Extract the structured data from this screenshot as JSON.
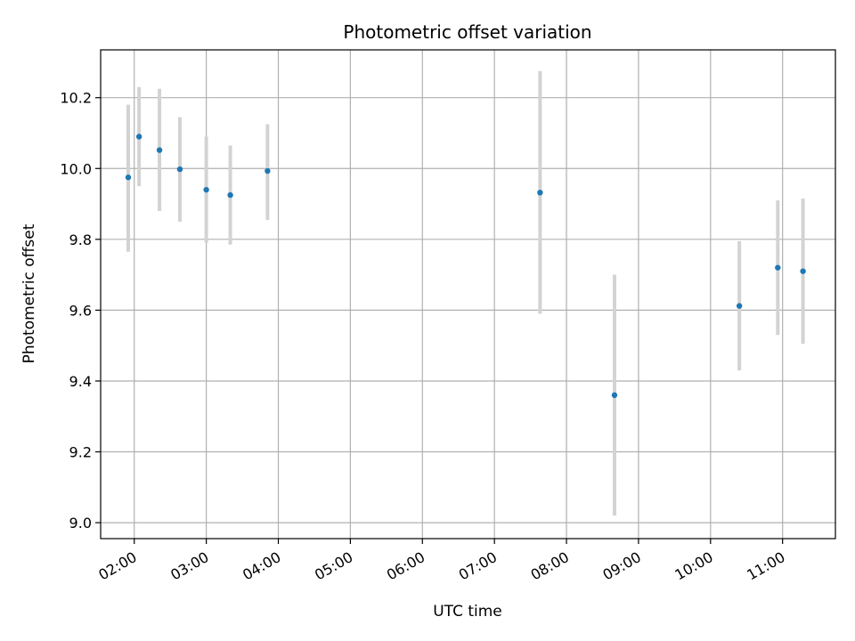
{
  "chart_data": {
    "type": "scatter",
    "title": "Photometric offset variation",
    "xlabel": "UTC time",
    "ylabel": "Photometric offset",
    "x_unit": "UTC time (HH:MM)",
    "xlim": [
      "01:32",
      "11:44"
    ],
    "ylim": [
      8.955,
      10.335
    ],
    "grid": true,
    "xticks": [
      "02:00",
      "03:00",
      "04:00",
      "05:00",
      "06:00",
      "07:00",
      "08:00",
      "09:00",
      "10:00",
      "11:00"
    ],
    "yticks": [
      "9.0",
      "9.2",
      "9.4",
      "9.6",
      "9.8",
      "10.0",
      "10.2"
    ],
    "series": [
      {
        "marker_color": "#1f77b4",
        "errorbar_color": "#d3d3d3",
        "points": [
          {
            "x": "01:55",
            "y": 9.975,
            "ylow": 9.765,
            "yhigh": 10.18
          },
          {
            "x": "02:04",
            "y": 10.09,
            "ylow": 9.95,
            "yhigh": 10.23
          },
          {
            "x": "02:21",
            "y": 10.052,
            "ylow": 9.88,
            "yhigh": 10.225
          },
          {
            "x": "02:38",
            "y": 9.998,
            "ylow": 9.85,
            "yhigh": 10.145
          },
          {
            "x": "03:00",
            "y": 9.94,
            "ylow": 9.79,
            "yhigh": 10.09
          },
          {
            "x": "03:20",
            "y": 9.925,
            "ylow": 9.785,
            "yhigh": 10.065
          },
          {
            "x": "03:51",
            "y": 9.993,
            "ylow": 9.855,
            "yhigh": 10.125
          },
          {
            "x": "07:38",
            "y": 9.932,
            "ylow": 9.59,
            "yhigh": 10.275
          },
          {
            "x": "08:40",
            "y": 9.36,
            "ylow": 9.02,
            "yhigh": 9.7
          },
          {
            "x": "10:24",
            "y": 9.612,
            "ylow": 9.43,
            "yhigh": 9.795
          },
          {
            "x": "10:56",
            "y": 9.72,
            "ylow": 9.53,
            "yhigh": 9.91
          },
          {
            "x": "11:17",
            "y": 9.71,
            "ylow": 9.505,
            "yhigh": 9.915
          }
        ]
      }
    ]
  }
}
